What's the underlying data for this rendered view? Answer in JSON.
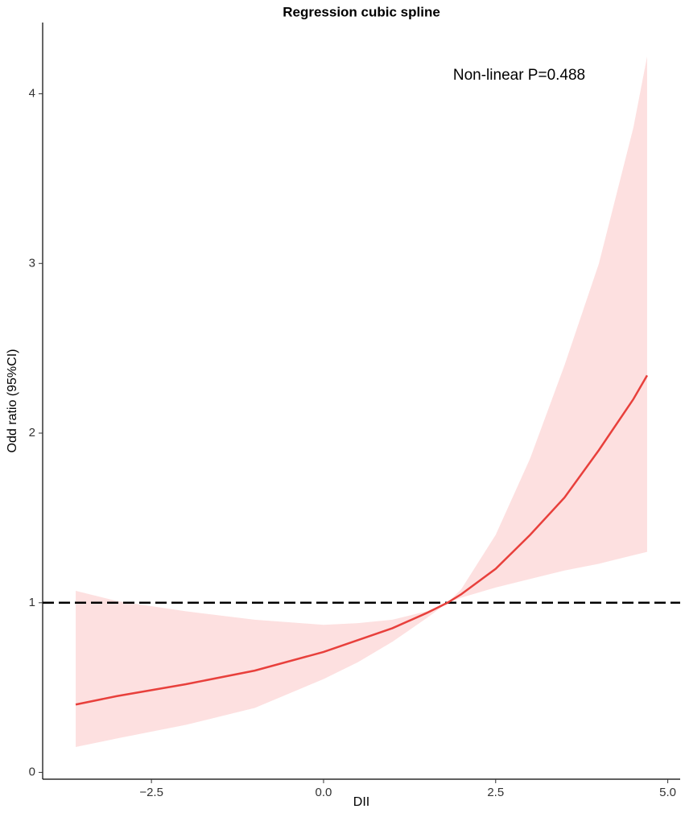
{
  "chart_data": {
    "type": "line",
    "title": "Regression cubic spline",
    "x_label": "DII",
    "y_label": "Odd ratio (95%CI)",
    "annotation": "Non-linear P=0.488",
    "x": [
      -3.6,
      -3,
      -2,
      -1,
      0,
      0.5,
      1,
      1.5,
      1.8,
      2,
      2.5,
      3,
      3.5,
      4,
      4.5,
      4.7
    ],
    "values": [
      0.4,
      0.45,
      0.52,
      0.6,
      0.71,
      0.78,
      0.85,
      0.94,
      1.0,
      1.05,
      1.2,
      1.4,
      1.62,
      1.9,
      2.2,
      2.34
    ],
    "lower": [
      0.15,
      0.2,
      0.28,
      0.38,
      0.55,
      0.65,
      0.77,
      0.91,
      1.0,
      1.03,
      1.09,
      1.14,
      1.19,
      1.23,
      1.28,
      1.3
    ],
    "upper": [
      1.07,
      1.01,
      0.95,
      0.9,
      0.87,
      0.88,
      0.9,
      0.95,
      1.0,
      1.08,
      1.4,
      1.85,
      2.4,
      3.0,
      3.8,
      4.22
    ],
    "color": "#e8403c",
    "band_color": "#fde0e0",
    "reference_line": 1,
    "reference_color": "#000000",
    "xlim": [
      -4.08,
      5.18
    ],
    "ylim": [
      -0.04,
      4.42
    ],
    "xticks": [
      {
        "value": -2.5,
        "label": "−2.5"
      },
      {
        "value": 0,
        "label": "0.0"
      },
      {
        "value": 2.5,
        "label": "2.5"
      },
      {
        "value": 5,
        "label": "5.0"
      }
    ],
    "yticks": [
      0,
      1,
      2,
      3,
      4
    ],
    "grid": false
  }
}
